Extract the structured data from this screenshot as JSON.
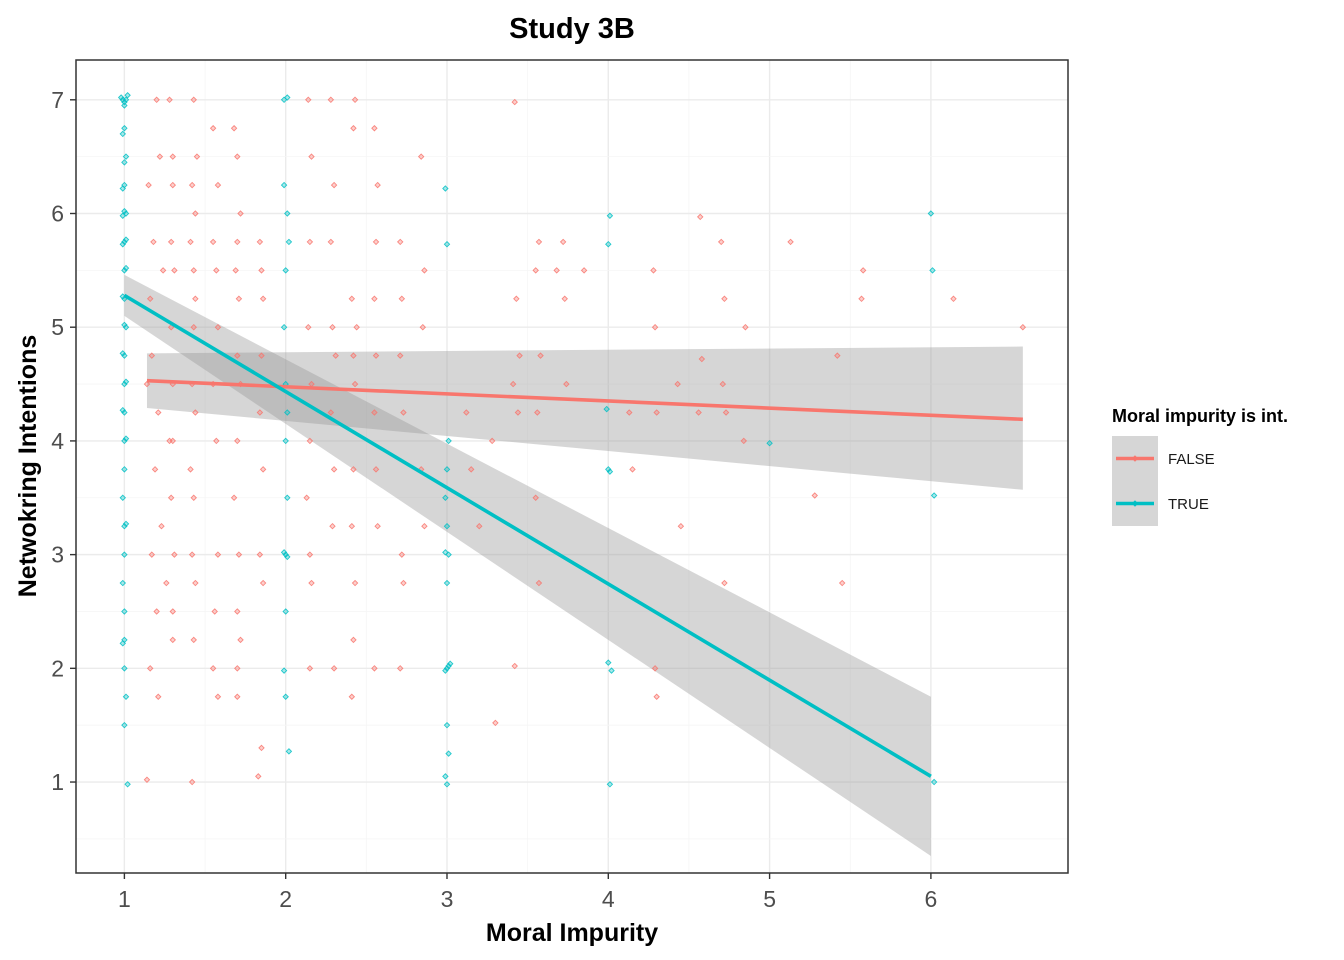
{
  "chart_data": {
    "type": "scatter",
    "title": "Study 3B",
    "xlabel": "Moral Impurity",
    "ylabel": "Netwokring Intentions",
    "xlim": [
      0.7,
      6.85
    ],
    "ylim": [
      0.2,
      7.35
    ],
    "x_ticks": [
      "1",
      "2",
      "3",
      "4",
      "5",
      "6"
    ],
    "y_ticks": [
      "1",
      "2",
      "3",
      "4",
      "5",
      "6",
      "7"
    ],
    "grid": true,
    "legend": {
      "title": "Moral impurity is int.",
      "position": "right"
    },
    "series": [
      {
        "name": "FALSE",
        "color": "#F8766D",
        "trend": {
          "x": [
            1.14,
            6.57
          ],
          "y": [
            4.53,
            4.19
          ]
        },
        "ci_band": {
          "x": [
            1.14,
            6.57
          ],
          "lower": [
            4.29,
            3.57
          ],
          "upper": [
            4.77,
            4.83
          ]
        },
        "points": [
          [
            1.14,
            4.5
          ],
          [
            1.16,
            5.25
          ],
          [
            1.17,
            4.75
          ],
          [
            1.15,
            6.25
          ],
          [
            1.2,
            7.0
          ],
          [
            1.22,
            6.5
          ],
          [
            1.18,
            5.75
          ],
          [
            1.24,
            5.5
          ],
          [
            1.21,
            4.25
          ],
          [
            1.19,
            3.75
          ],
          [
            1.23,
            3.25
          ],
          [
            1.17,
            3.0
          ],
          [
            1.2,
            2.5
          ],
          [
            1.16,
            2.0
          ],
          [
            1.21,
            1.75
          ],
          [
            1.14,
            1.02
          ],
          [
            1.26,
            2.75
          ],
          [
            1.28,
            4.0
          ],
          [
            1.28,
            7.0
          ],
          [
            1.3,
            6.5
          ],
          [
            1.3,
            6.25
          ],
          [
            1.29,
            5.75
          ],
          [
            1.31,
            5.5
          ],
          [
            1.29,
            5.0
          ],
          [
            1.3,
            4.5
          ],
          [
            1.3,
            4.0
          ],
          [
            1.29,
            3.5
          ],
          [
            1.31,
            3.0
          ],
          [
            1.3,
            2.5
          ],
          [
            1.3,
            2.25
          ],
          [
            1.43,
            7.0
          ],
          [
            1.45,
            6.5
          ],
          [
            1.42,
            6.25
          ],
          [
            1.44,
            6.0
          ],
          [
            1.41,
            5.75
          ],
          [
            1.43,
            5.5
          ],
          [
            1.44,
            5.25
          ],
          [
            1.43,
            5.0
          ],
          [
            1.42,
            4.5
          ],
          [
            1.44,
            4.25
          ],
          [
            1.41,
            3.75
          ],
          [
            1.43,
            3.5
          ],
          [
            1.42,
            3.0
          ],
          [
            1.44,
            2.75
          ],
          [
            1.43,
            2.25
          ],
          [
            1.42,
            1.0
          ],
          [
            1.55,
            6.75
          ],
          [
            1.58,
            6.25
          ],
          [
            1.55,
            5.75
          ],
          [
            1.57,
            5.5
          ],
          [
            1.58,
            5.0
          ],
          [
            1.55,
            4.5
          ],
          [
            1.57,
            4.0
          ],
          [
            1.58,
            3.0
          ],
          [
            1.56,
            2.5
          ],
          [
            1.55,
            2.0
          ],
          [
            1.58,
            1.75
          ],
          [
            1.68,
            6.75
          ],
          [
            1.7,
            6.5
          ],
          [
            1.72,
            6.0
          ],
          [
            1.7,
            5.75
          ],
          [
            1.69,
            5.5
          ],
          [
            1.71,
            5.25
          ],
          [
            1.7,
            4.75
          ],
          [
            1.72,
            4.5
          ],
          [
            1.7,
            4.0
          ],
          [
            1.68,
            3.5
          ],
          [
            1.71,
            3.0
          ],
          [
            1.7,
            2.5
          ],
          [
            1.72,
            2.25
          ],
          [
            1.7,
            2.0
          ],
          [
            1.7,
            1.75
          ],
          [
            1.84,
            5.75
          ],
          [
            1.85,
            5.5
          ],
          [
            1.86,
            5.25
          ],
          [
            1.85,
            4.75
          ],
          [
            1.84,
            4.25
          ],
          [
            1.86,
            3.75
          ],
          [
            1.84,
            3.0
          ],
          [
            1.86,
            2.75
          ],
          [
            1.85,
            1.3
          ],
          [
            1.83,
            1.05
          ],
          [
            2.14,
            7.0
          ],
          [
            2.16,
            6.5
          ],
          [
            2.15,
            5.75
          ],
          [
            2.14,
            5.0
          ],
          [
            2.16,
            4.5
          ],
          [
            2.15,
            4.0
          ],
          [
            2.13,
            3.5
          ],
          [
            2.15,
            3.0
          ],
          [
            2.16,
            2.75
          ],
          [
            2.15,
            2.0
          ],
          [
            2.28,
            7.0
          ],
          [
            2.3,
            6.25
          ],
          [
            2.28,
            5.75
          ],
          [
            2.29,
            5.0
          ],
          [
            2.31,
            4.75
          ],
          [
            2.28,
            4.25
          ],
          [
            2.3,
            3.75
          ],
          [
            2.29,
            3.25
          ],
          [
            2.3,
            2.0
          ],
          [
            2.43,
            7.0
          ],
          [
            2.42,
            6.75
          ],
          [
            2.41,
            5.25
          ],
          [
            2.44,
            5.0
          ],
          [
            2.42,
            4.75
          ],
          [
            2.43,
            4.5
          ],
          [
            2.42,
            3.75
          ],
          [
            2.41,
            3.25
          ],
          [
            2.43,
            2.75
          ],
          [
            2.42,
            2.25
          ],
          [
            2.41,
            1.75
          ],
          [
            2.55,
            6.75
          ],
          [
            2.57,
            6.25
          ],
          [
            2.56,
            5.75
          ],
          [
            2.55,
            5.25
          ],
          [
            2.56,
            4.75
          ],
          [
            2.55,
            4.25
          ],
          [
            2.56,
            3.75
          ],
          [
            2.57,
            3.25
          ],
          [
            2.55,
            2.0
          ],
          [
            2.71,
            5.75
          ],
          [
            2.72,
            5.25
          ],
          [
            2.71,
            4.75
          ],
          [
            2.73,
            4.25
          ],
          [
            2.72,
            3.0
          ],
          [
            2.73,
            2.75
          ],
          [
            2.71,
            2.0
          ],
          [
            2.84,
            6.5
          ],
          [
            2.86,
            5.5
          ],
          [
            2.85,
            5.0
          ],
          [
            2.84,
            3.75
          ],
          [
            2.86,
            3.25
          ],
          [
            3.12,
            4.25
          ],
          [
            3.15,
            3.75
          ],
          [
            3.2,
            3.25
          ],
          [
            3.3,
            1.52
          ],
          [
            3.28,
            4.0
          ],
          [
            3.42,
            6.98
          ],
          [
            3.43,
            5.25
          ],
          [
            3.45,
            4.75
          ],
          [
            3.41,
            4.5
          ],
          [
            3.44,
            4.25
          ],
          [
            3.42,
            2.02
          ],
          [
            3.57,
            5.75
          ],
          [
            3.55,
            5.5
          ],
          [
            3.58,
            4.75
          ],
          [
            3.56,
            4.25
          ],
          [
            3.55,
            3.5
          ],
          [
            3.57,
            2.75
          ],
          [
            3.68,
            5.5
          ],
          [
            3.72,
            5.75
          ],
          [
            3.74,
            4.5
          ],
          [
            3.73,
            5.25
          ],
          [
            3.85,
            5.5
          ],
          [
            4.13,
            4.25
          ],
          [
            4.15,
            3.75
          ],
          [
            4.28,
            5.5
          ],
          [
            4.29,
            5.0
          ],
          [
            4.3,
            4.25
          ],
          [
            4.29,
            2.0
          ],
          [
            4.3,
            1.75
          ],
          [
            4.43,
            4.5
          ],
          [
            4.45,
            3.25
          ],
          [
            4.57,
            5.97
          ],
          [
            4.58,
            4.72
          ],
          [
            4.56,
            4.25
          ],
          [
            4.7,
            5.75
          ],
          [
            4.72,
            5.25
          ],
          [
            4.71,
            4.5
          ],
          [
            4.73,
            4.25
          ],
          [
            4.72,
            2.75
          ],
          [
            4.85,
            5.0
          ],
          [
            4.84,
            4.0
          ],
          [
            5.13,
            5.75
          ],
          [
            5.28,
            3.52
          ],
          [
            5.42,
            4.75
          ],
          [
            5.45,
            2.75
          ],
          [
            5.58,
            5.5
          ],
          [
            5.57,
            5.25
          ],
          [
            6.14,
            5.25
          ],
          [
            6.57,
            5.0
          ]
        ]
      },
      {
        "name": "TRUE",
        "color": "#00BFC4",
        "trend": {
          "x": [
            1.0,
            6.0
          ],
          "y": [
            5.28,
            1.05
          ]
        },
        "ci_band": {
          "x": [
            1.0,
            6.0
          ],
          "lower": [
            5.1,
            0.35
          ],
          "upper": [
            5.46,
            1.75
          ]
        },
        "points": [
          [
            0.99,
            7.0
          ],
          [
            1.01,
            7.0
          ],
          [
            1.0,
            6.98
          ],
          [
            1.0,
            6.95
          ],
          [
            0.98,
            7.02
          ],
          [
            1.02,
            7.04
          ],
          [
            1.0,
            6.75
          ],
          [
            0.99,
            6.7
          ],
          [
            1.01,
            6.5
          ],
          [
            1.0,
            6.45
          ],
          [
            1.0,
            6.25
          ],
          [
            0.99,
            6.22
          ],
          [
            1.01,
            6.0
          ],
          [
            1.0,
            6.02
          ],
          [
            0.99,
            5.98
          ],
          [
            1.0,
            5.75
          ],
          [
            1.01,
            5.77
          ],
          [
            0.99,
            5.73
          ],
          [
            1.0,
            5.5
          ],
          [
            1.01,
            5.52
          ],
          [
            1.0,
            5.25
          ],
          [
            0.99,
            5.27
          ],
          [
            1.01,
            5.0
          ],
          [
            1.0,
            5.02
          ],
          [
            1.0,
            4.75
          ],
          [
            0.99,
            4.77
          ],
          [
            1.0,
            4.5
          ],
          [
            1.01,
            4.52
          ],
          [
            1.0,
            4.25
          ],
          [
            0.99,
            4.27
          ],
          [
            1.0,
            4.0
          ],
          [
            1.01,
            4.02
          ],
          [
            1.0,
            3.75
          ],
          [
            0.99,
            3.5
          ],
          [
            1.0,
            3.25
          ],
          [
            1.01,
            3.27
          ],
          [
            1.0,
            3.0
          ],
          [
            0.99,
            2.75
          ],
          [
            1.0,
            2.5
          ],
          [
            1.0,
            2.25
          ],
          [
            0.99,
            2.22
          ],
          [
            1.0,
            2.0
          ],
          [
            1.01,
            1.75
          ],
          [
            1.0,
            1.5
          ],
          [
            1.02,
            0.98
          ],
          [
            1.99,
            7.0
          ],
          [
            2.01,
            7.02
          ],
          [
            1.99,
            6.25
          ],
          [
            2.01,
            6.0
          ],
          [
            2.02,
            5.75
          ],
          [
            2.0,
            5.5
          ],
          [
            1.99,
            5.0
          ],
          [
            2.0,
            4.5
          ],
          [
            2.01,
            4.25
          ],
          [
            2.0,
            4.0
          ],
          [
            2.01,
            3.5
          ],
          [
            2.0,
            3.0
          ],
          [
            1.99,
            3.02
          ],
          [
            2.01,
            2.98
          ],
          [
            2.0,
            2.5
          ],
          [
            1.99,
            1.98
          ],
          [
            2.0,
            1.75
          ],
          [
            2.02,
            1.27
          ],
          [
            2.99,
            6.22
          ],
          [
            3.0,
            5.73
          ],
          [
            3.01,
            4.0
          ],
          [
            3.0,
            3.75
          ],
          [
            2.99,
            3.5
          ],
          [
            3.0,
            3.25
          ],
          [
            3.01,
            3.0
          ],
          [
            2.99,
            3.02
          ],
          [
            3.0,
            2.75
          ],
          [
            3.0,
            2.0
          ],
          [
            3.01,
            2.02
          ],
          [
            2.99,
            1.98
          ],
          [
            3.02,
            2.04
          ],
          [
            3.0,
            1.5
          ],
          [
            3.01,
            1.25
          ],
          [
            2.99,
            1.05
          ],
          [
            3.0,
            0.98
          ],
          [
            4.01,
            5.98
          ],
          [
            4.0,
            5.73
          ],
          [
            3.99,
            4.28
          ],
          [
            4.0,
            3.75
          ],
          [
            4.01,
            3.73
          ],
          [
            4.0,
            2.05
          ],
          [
            4.02,
            1.98
          ],
          [
            4.01,
            0.98
          ],
          [
            5.0,
            3.98
          ],
          [
            6.0,
            6.0
          ],
          [
            6.01,
            5.5
          ],
          [
            6.02,
            3.52
          ],
          [
            6.02,
            1.0
          ]
        ]
      }
    ]
  }
}
